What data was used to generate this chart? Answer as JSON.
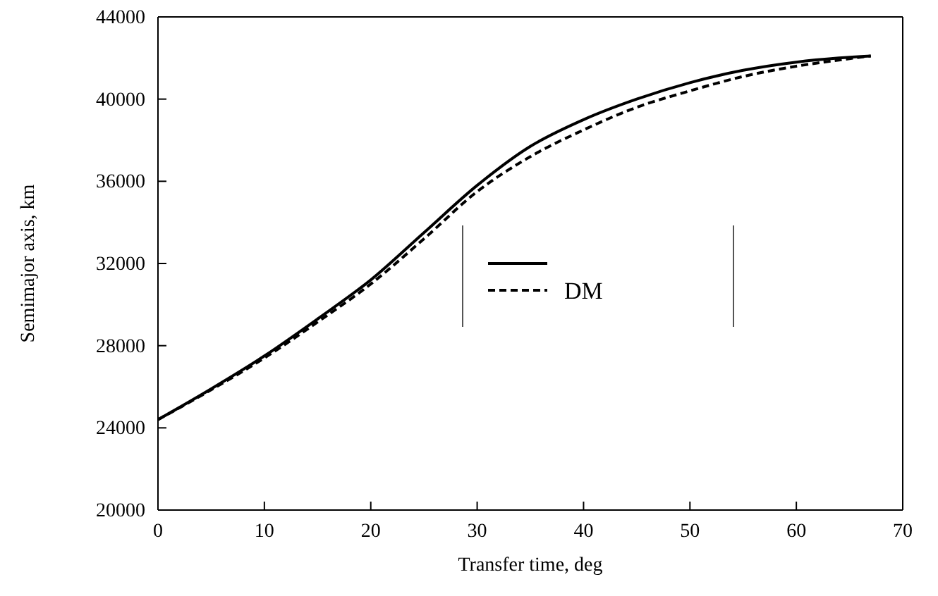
{
  "chart_data": {
    "type": "line",
    "xlabel": "Transfer time, deg",
    "ylabel": "Semimajor axis, km",
    "xlim": [
      0,
      70
    ],
    "xticks": [
      0,
      10,
      20,
      30,
      40,
      50,
      60,
      70
    ],
    "ylim": [
      20000,
      44000
    ],
    "yticks": [
      20000,
      24000,
      28000,
      32000,
      36000,
      40000,
      44000
    ],
    "grid": false,
    "legend": "right",
    "marker": "none",
    "series": [
      {
        "color": "#000000",
        "line_style": "solid",
        "x": [
          0,
          5,
          10,
          15,
          20,
          25,
          30,
          35,
          40,
          45,
          50,
          55,
          60,
          64,
          67
        ],
        "values": [
          24400,
          25900,
          27500,
          29300,
          31200,
          33500,
          35800,
          37700,
          39000,
          40000,
          40800,
          41400,
          41800,
          42000,
          42100
        ]
      },
      {
        "name": "DM",
        "color": "#000000",
        "line_style": "dashed",
        "x": [
          0,
          5,
          10,
          15,
          20,
          25,
          30,
          35,
          40,
          45,
          50,
          55,
          60,
          64,
          67
        ],
        "values": [
          24400,
          25850,
          27400,
          29150,
          31000,
          33200,
          35500,
          37200,
          38500,
          39600,
          40400,
          41100,
          41600,
          41900,
          42100
        ]
      }
    ]
  }
}
